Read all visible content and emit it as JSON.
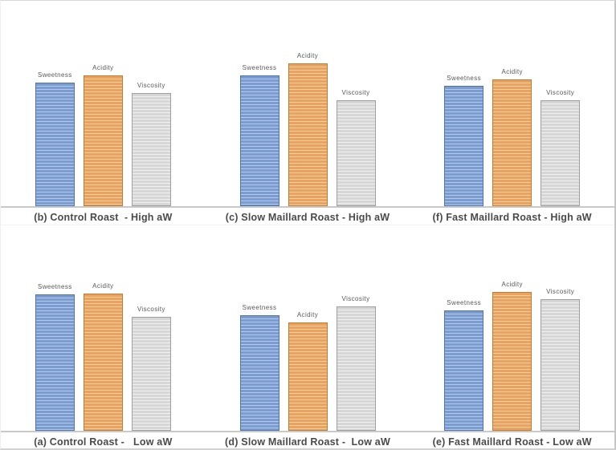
{
  "page": {
    "background": "#ffffff",
    "frame_border_color": "#d6d6d6",
    "axis_line_color": "#c9c9c9",
    "row_divider_color": "#f2f2f2",
    "bar_label_color": "#595959",
    "caption_color": "#4a4a4a"
  },
  "series_styles": {
    "Sweetness": {
      "fill": "#7b9cd0",
      "stripe": "#b5cae8",
      "border": "#4f74ab"
    },
    "Acidity": {
      "fill": "#eca25f",
      "stripe": "#f7d0a4",
      "border": "#bf7c35"
    },
    "Viscosity": {
      "fill": "#d6d6d6",
      "stripe": "#f1f1f1",
      "border": "#9f9f9f"
    }
  },
  "chart_data": [
    {
      "id": "b",
      "row": 0,
      "col": 0,
      "type": "bar",
      "title": "(b) Control Roast  - High aW",
      "categories": [
        "Sweetness",
        "Acidity",
        "Viscosity"
      ],
      "values": [
        154,
        163,
        141
      ],
      "ylim": [
        0,
        256
      ],
      "xlabel": "",
      "ylabel": "",
      "grid": false,
      "legend": "none, labels above bars"
    },
    {
      "id": "c",
      "row": 0,
      "col": 1,
      "type": "bar",
      "title": "(c) Slow Maillard Roast - High aW",
      "categories": [
        "Sweetness",
        "Acidity",
        "Viscosity"
      ],
      "values": [
        163,
        178,
        132
      ],
      "ylim": [
        0,
        256
      ],
      "xlabel": "",
      "ylabel": "",
      "grid": false,
      "legend": "none, labels above bars"
    },
    {
      "id": "f",
      "row": 0,
      "col": 2,
      "type": "bar",
      "title": "(f) Fast Maillard Roast - High aW",
      "categories": [
        "Sweetness",
        "Acidity",
        "Viscosity"
      ],
      "values": [
        150,
        158,
        132
      ],
      "ylim": [
        0,
        256
      ],
      "xlabel": "",
      "ylabel": "",
      "grid": false,
      "legend": "none, labels above bars"
    },
    {
      "id": "a",
      "row": 1,
      "col": 0,
      "type": "bar",
      "title": "(a) Control Roast -   Low aW",
      "categories": [
        "Sweetness",
        "Acidity",
        "Viscosity"
      ],
      "values": [
        170,
        171,
        142
      ],
      "ylim": [
        0,
        256
      ],
      "xlabel": "",
      "ylabel": "",
      "grid": false,
      "legend": "none, labels above bars"
    },
    {
      "id": "d",
      "row": 1,
      "col": 1,
      "type": "bar",
      "title": "(d) Slow Maillard Roast -  Low aW",
      "categories": [
        "Sweetness",
        "Acidity",
        "Viscosity"
      ],
      "values": [
        144,
        135,
        155
      ],
      "ylim": [
        0,
        256
      ],
      "xlabel": "",
      "ylabel": "",
      "grid": false,
      "legend": "none, labels above bars"
    },
    {
      "id": "e",
      "row": 1,
      "col": 2,
      "type": "bar",
      "title": "(e) Fast Maillard Roast - Low aW",
      "categories": [
        "Sweetness",
        "Acidity",
        "Viscosity"
      ],
      "values": [
        150,
        173,
        164
      ],
      "ylim": [
        0,
        256
      ],
      "xlabel": "",
      "ylabel": "",
      "grid": false,
      "legend": "none, labels above bars"
    }
  ]
}
